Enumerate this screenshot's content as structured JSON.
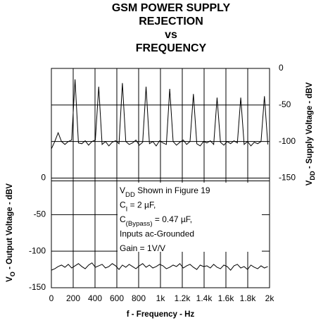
{
  "chart_data": {
    "type": "line",
    "title": [
      "GSM POWER SUPPLY",
      "REJECTION",
      "vs",
      "FREQUENCY"
    ],
    "xlabel": "f - Frequency - Hz",
    "ylabel": [
      "V",
      "O",
      " - Output Voltage - dBV"
    ],
    "y2label": [
      "V",
      "DD",
      " - Supply Voltage - dBV"
    ],
    "annotation": [
      [
        "V",
        "DD",
        " Shown in Figure 19"
      ],
      [
        "C",
        "I",
        " = 2 µF,"
      ],
      [
        "C",
        "(Bypass)",
        " = 0.47 µF,"
      ],
      [
        "Inputs ac-Grounded"
      ],
      [
        "Gain = 1V/V"
      ]
    ],
    "x": [
      0,
      31,
      62,
      93,
      124,
      155,
      186,
      217,
      248,
      279,
      310,
      341,
      372,
      403,
      434,
      465,
      496,
      527,
      558,
      589,
      620,
      651,
      682,
      713,
      744,
      775,
      806,
      837,
      868,
      899,
      930,
      961,
      992,
      1023,
      1054,
      1085,
      1116,
      1147,
      1178,
      1209,
      1240,
      1271,
      1302,
      1333,
      1364,
      1395,
      1426,
      1457,
      1488,
      1519,
      1550,
      1581,
      1612,
      1643,
      1674,
      1705,
      1736,
      1767,
      1798,
      1829,
      1860,
      1891,
      1922,
      1953,
      1984
    ],
    "series": [
      {
        "name": "Supply Voltage",
        "color": "#000000",
        "axis": "y2",
        "values": [
          -110,
          -100,
          -88,
          -100,
          -104,
          -100,
          -98,
          -15,
          -102,
          -103,
          -99,
          -105,
          -100,
          -98,
          -25,
          -104,
          -100,
          -106,
          -101,
          -99,
          -103,
          -20,
          -100,
          -104,
          -102,
          -98,
          -105,
          -101,
          -25,
          -103,
          -100,
          -106,
          -99,
          -102,
          -104,
          -28,
          -100,
          -105,
          -101,
          -98,
          -104,
          -100,
          -35,
          -103,
          -106,
          -100,
          -102,
          -99,
          -104,
          -40,
          -101,
          -105,
          -100,
          -103,
          -99,
          -102,
          -40,
          -104,
          -100,
          -106,
          -101,
          -103,
          -100,
          -38,
          -104
        ]
      },
      {
        "name": "Output Voltage",
        "color": "#000000",
        "values": [
          -126,
          -124,
          -121,
          -119,
          -122,
          -118,
          -123,
          -120,
          -117,
          -121,
          -124,
          -119,
          -116,
          -122,
          -120,
          -118,
          -123,
          -121,
          -117,
          -120,
          -125,
          -119,
          -122,
          -118,
          -121,
          -124,
          -120,
          -117,
          -122,
          -119,
          -123,
          -121,
          -118,
          -120,
          -124,
          -122,
          -119,
          -121,
          -117,
          -123,
          -120,
          -118,
          -122,
          -125,
          -119,
          -121,
          -120,
          -123,
          -118,
          -122,
          -124,
          -119,
          -121,
          -126,
          -120,
          -118,
          -123,
          -121,
          -125,
          -119,
          -122,
          -124,
          -120,
          -123,
          -121
        ]
      }
    ],
    "xlim": [
      0,
      2000
    ],
    "xticks": [
      0,
      200,
      400,
      600,
      800,
      {
        "value": 1000,
        "label": "1k"
      },
      {
        "value": 1200,
        "label": "1.2k"
      },
      {
        "value": 1400,
        "label": "1.4k"
      },
      {
        "value": 1600,
        "label": "1.6k"
      },
      {
        "value": 1800,
        "label": "1.8k"
      },
      {
        "value": 2000,
        "label": "2k"
      }
    ],
    "ylim": [
      -150,
      150
    ],
    "yticks": [
      0,
      -50,
      -100,
      -150
    ],
    "y2lim": [
      -300,
      0
    ],
    "y2ticks": [
      0,
      -50,
      -100,
      -150
    ],
    "grid": true
  }
}
